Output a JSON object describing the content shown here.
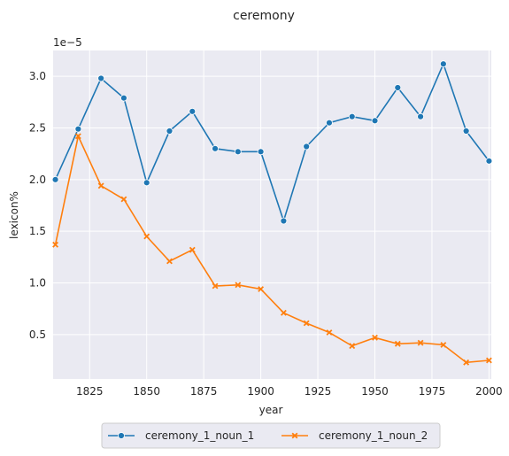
{
  "chart_data": {
    "type": "line",
    "title": "ceremony",
    "xlabel": "year",
    "ylabel": "lexicon%",
    "y_exponent_label": "1e−5",
    "xlim": [
      1809,
      2001
    ],
    "ylim": [
      0.07,
      3.25
    ],
    "x_ticks": [
      1825,
      1850,
      1875,
      1900,
      1925,
      1950,
      1975,
      2000
    ],
    "y_ticks": [
      0.5,
      1.0,
      1.5,
      2.0,
      2.5,
      3.0
    ],
    "y_tick_labels": [
      "0.5",
      "1.0",
      "1.5",
      "2.0",
      "2.5",
      "3.0"
    ],
    "grid": true,
    "legend_position": "bottom-center",
    "x": [
      1810,
      1820,
      1830,
      1840,
      1850,
      1860,
      1870,
      1880,
      1890,
      1900,
      1910,
      1920,
      1930,
      1940,
      1950,
      1960,
      1970,
      1980,
      1990,
      2000
    ],
    "series": [
      {
        "name": "ceremony_1_noun_1",
        "color": "#1f77b4",
        "marker": "circle",
        "values": [
          2.0,
          2.49,
          2.98,
          2.79,
          1.97,
          2.47,
          2.66,
          2.3,
          2.27,
          2.27,
          1.6,
          2.32,
          2.55,
          2.61,
          2.57,
          2.89,
          2.61,
          3.12,
          2.47,
          2.18
        ]
      },
      {
        "name": "ceremony_1_noun_2",
        "color": "#ff7f0e",
        "marker": "x",
        "values": [
          1.37,
          2.42,
          1.94,
          1.81,
          1.45,
          1.21,
          1.32,
          0.97,
          0.98,
          0.94,
          0.71,
          0.61,
          0.52,
          0.39,
          0.47,
          0.41,
          0.42,
          0.4,
          0.23,
          0.25
        ]
      }
    ]
  }
}
